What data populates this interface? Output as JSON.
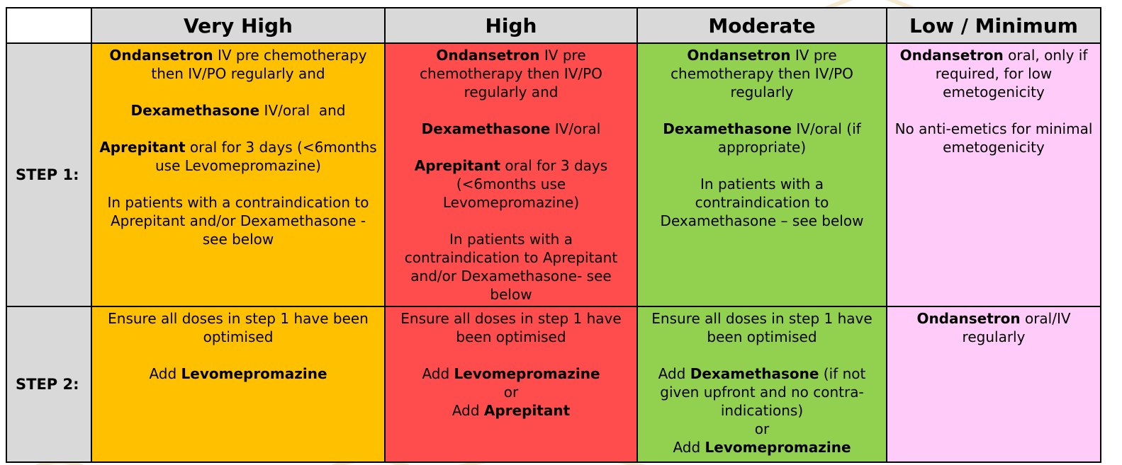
{
  "table": {
    "columns": [
      {
        "id": "very-high",
        "label": "Very High",
        "color": "#FFC000"
      },
      {
        "id": "high",
        "label": "High",
        "color": "#FF4D4D"
      },
      {
        "id": "moderate",
        "label": "Moderate",
        "color": "#92D050"
      },
      {
        "id": "low-minimum",
        "label": "Low / Minimum",
        "color": "#FFCCF9"
      }
    ],
    "header_bg": "#D9D9D9",
    "rows": [
      {
        "id": "step-1",
        "label": "STEP 1:",
        "cells": [
          [
            [
              {
                "t": "Ondansetron",
                "b": true
              },
              {
                "t": " IV pre chemotherapy then IV/PO regularly and",
                "b": false
              }
            ],
            [],
            [
              {
                "t": "Dexamethasone",
                "b": true
              },
              {
                "t": " IV/oral  and",
                "b": false
              }
            ],
            [],
            [
              {
                "t": "Aprepitant",
                "b": true
              },
              {
                "t": " oral for 3 days (<6months use Levomepromazine)",
                "b": false
              }
            ],
            [],
            [
              {
                "t": "In patients with a contraindication to Aprepitant and/or Dexamethasone - see below",
                "b": false
              }
            ]
          ],
          [
            [
              {
                "t": "Ondansetron",
                "b": true
              },
              {
                "t": " IV pre chemotherapy then IV/PO regularly and",
                "b": false
              }
            ],
            [],
            [
              {
                "t": "Dexamethasone",
                "b": true
              },
              {
                "t": " IV/oral",
                "b": false
              }
            ],
            [],
            [
              {
                "t": "Aprepitant",
                "b": true
              },
              {
                "t": " oral for 3 days (<6months use Levomepromazine)",
                "b": false
              }
            ],
            [],
            [
              {
                "t": "In patients with a contraindication to Aprepitant and/or Dexamethasone- see below",
                "b": false
              }
            ]
          ],
          [
            [
              {
                "t": "Ondansetron",
                "b": true
              },
              {
                "t": " IV pre chemotherapy then IV/PO regularly",
                "b": false
              }
            ],
            [],
            [
              {
                "t": "Dexamethasone",
                "b": true
              },
              {
                "t": " IV/oral (if appropriate)",
                "b": false
              }
            ],
            [],
            [
              {
                "t": "In patients with a contraindication to Dexamethasone – see below",
                "b": false
              }
            ]
          ],
          [
            [
              {
                "t": "Ondansetron",
                "b": true
              },
              {
                "t": " oral, only if required, for low emetogenicity",
                "b": false
              }
            ],
            [],
            [
              {
                "t": "No anti-emetics for minimal emetogenicity",
                "b": false
              }
            ]
          ]
        ]
      },
      {
        "id": "step-2",
        "label": "STEP 2:",
        "cells": [
          [
            [
              {
                "t": "Ensure all doses in step 1 have been optimised",
                "b": false
              }
            ],
            [],
            [
              {
                "t": "Add ",
                "b": false
              },
              {
                "t": "Levomepromazine",
                "b": true
              }
            ]
          ],
          [
            [
              {
                "t": "Ensure all doses in step 1 have been optimised",
                "b": false
              }
            ],
            [],
            [
              {
                "t": "Add ",
                "b": false
              },
              {
                "t": "Levomepromazine",
                "b": true
              }
            ],
            [
              {
                "t": "or",
                "b": false
              }
            ],
            [
              {
                "t": "Add ",
                "b": false
              },
              {
                "t": "Aprepitant",
                "b": true
              }
            ]
          ],
          [
            [
              {
                "t": "Ensure all doses in step 1 have been optimised",
                "b": false
              }
            ],
            [],
            [
              {
                "t": "Add ",
                "b": false
              },
              {
                "t": "Dexamethasone",
                "b": true
              },
              {
                "t": " (if not given upfront and no contra-indications)",
                "b": false
              }
            ],
            [
              {
                "t": "or",
                "b": false
              }
            ],
            [
              {
                "t": "Add ",
                "b": false
              },
              {
                "t": "Levomepromazine",
                "b": true
              }
            ]
          ],
          [
            [
              {
                "t": "Ondansetron",
                "b": true
              },
              {
                "t": " oral/IV regularly",
                "b": false
              }
            ]
          ]
        ]
      }
    ]
  }
}
